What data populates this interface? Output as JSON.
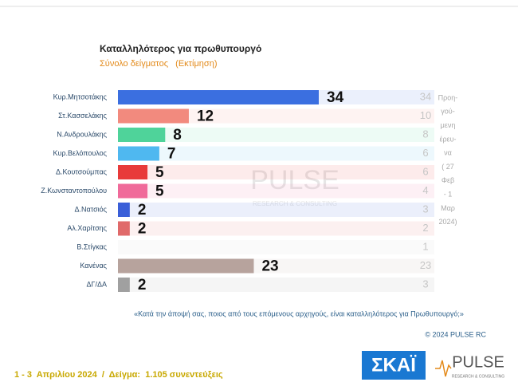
{
  "chart_data": {
    "type": "bar",
    "title": "Καταλληλότερος για πρωθυπουργό",
    "subtitle": "Σύνολο δείγματος   (Εκτίμηση)",
    "categories": [
      "Κυρ.Μητσοτάκης",
      "Στ.Κασσελάκης",
      "Ν.Ανδρουλάκης",
      "Κυρ.Βελόπουλος",
      "Δ.Κουτσούμπας",
      "Ζ.Κωνσταντοπούλου",
      "Δ.Νατσιός",
      "Αλ.Χαρίτσης",
      "Β.Στίγκας",
      "Κανένας",
      "ΔΓ/ΔΑ"
    ],
    "values": [
      34,
      12,
      8,
      7,
      5,
      5,
      2,
      2,
      null,
      23,
      2
    ],
    "colors": [
      "#3b6fe0",
      "#f28a7e",
      "#4fd39a",
      "#4fb8f0",
      "#e83a3a",
      "#f06a9a",
      "#3a5fd8",
      "#e06a6a",
      "#cccccc",
      "#b7a39d",
      "#a0a0a0"
    ],
    "previous_values": [
      34,
      10,
      8,
      6,
      6,
      4,
      3,
      2,
      1,
      23,
      3
    ],
    "previous_label": [
      "Προη-",
      "γού-",
      "μενη",
      "έρευ-",
      "να",
      "( 27",
      "Φεβ",
      "- 1",
      "Μαρ",
      "2024)"
    ],
    "question": "«Κατά την άποψή σας, ποιος από τους επόμενους αρχηγούς, είναι καταλληλότερος για Πρωθυπουργό;»",
    "copyright": "© 2024 PULSE RC",
    "footer": "1 - 3  Απριλίου 2024  /  Δείγμα:  1.105 συνεντεύξεις",
    "logo_skai": "ΣΚΑΪ",
    "logo_pulse": "PULSE",
    "logo_pulse_sub": "RESEARCH & CONSULTING"
  }
}
